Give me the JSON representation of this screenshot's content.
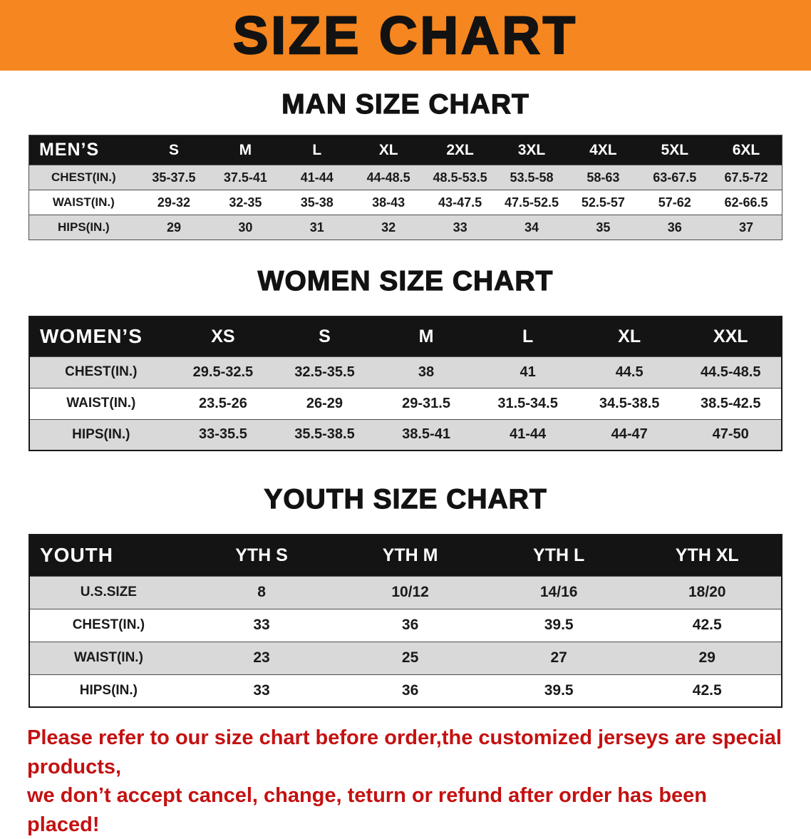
{
  "banner": {
    "title": "SIZE CHART",
    "bg_color": "#F6861F"
  },
  "theme": {
    "table_header_bg": "#141414",
    "table_header_fg": "#ffffff",
    "row_alt_bg": "#d9d9d9",
    "row_bg": "#ffffff",
    "line_color": "#4d4d4d"
  },
  "sections": [
    {
      "id": "men",
      "title": "MAN SIZE CHART",
      "header_label": "MEN’S",
      "columns": [
        "S",
        "M",
        "L",
        "XL",
        "2XL",
        "3XL",
        "4XL",
        "5XL",
        "6XL"
      ],
      "rows": [
        {
          "label": "CHEST(IN.)",
          "values": [
            "35-37.5",
            "37.5-41",
            "41-44",
            "44-48.5",
            "48.5-53.5",
            "53.5-58",
            "58-63",
            "63-67.5",
            "67.5-72"
          ]
        },
        {
          "label": "WAIST(IN.)",
          "values": [
            "29-32",
            "32-35",
            "35-38",
            "38-43",
            "43-47.5",
            "47.5-52.5",
            "52.5-57",
            "57-62",
            "62-66.5"
          ]
        },
        {
          "label": "HIPS(IN.)",
          "values": [
            "29",
            "30",
            "31",
            "32",
            "33",
            "34",
            "35",
            "36",
            "37"
          ]
        }
      ]
    },
    {
      "id": "women",
      "title": "WOMEN SIZE CHART",
      "header_label": "WOMEN’S",
      "columns": [
        "XS",
        "S",
        "M",
        "L",
        "XL",
        "XXL"
      ],
      "rows": [
        {
          "label": "CHEST(IN.)",
          "values": [
            "29.5-32.5",
            "32.5-35.5",
            "38",
            "41",
            "44.5",
            "44.5-48.5"
          ]
        },
        {
          "label": "WAIST(IN.)",
          "values": [
            "23.5-26",
            "26-29",
            "29-31.5",
            "31.5-34.5",
            "34.5-38.5",
            "38.5-42.5"
          ]
        },
        {
          "label": "HIPS(IN.)",
          "values": [
            "33-35.5",
            "35.5-38.5",
            "38.5-41",
            "41-44",
            "44-47",
            "47-50"
          ]
        }
      ]
    },
    {
      "id": "youth",
      "title": "YOUTH SIZE CHART",
      "header_label": "YOUTH",
      "columns": [
        "YTH S",
        "YTH M",
        "YTH L",
        "YTH XL"
      ],
      "rows": [
        {
          "label": "U.S.SIZE",
          "values": [
            "8",
            "10/12",
            "14/16",
            "18/20"
          ]
        },
        {
          "label": "CHEST(IN.)",
          "values": [
            "33",
            "36",
            "39.5",
            "42.5"
          ]
        },
        {
          "label": "WAIST(IN.)",
          "values": [
            "23",
            "25",
            "27",
            "29"
          ]
        },
        {
          "label": "HIPS(IN.)",
          "values": [
            "33",
            "36",
            "39.5",
            "42.5"
          ]
        }
      ]
    }
  ],
  "disclaimer": {
    "line1": "Please refer to our size chart before order,the customized jerseys are special products,",
    "line2": "we don’t accept cancel, change, teturn or refund after order has been placed!",
    "color": "#C41111"
  }
}
